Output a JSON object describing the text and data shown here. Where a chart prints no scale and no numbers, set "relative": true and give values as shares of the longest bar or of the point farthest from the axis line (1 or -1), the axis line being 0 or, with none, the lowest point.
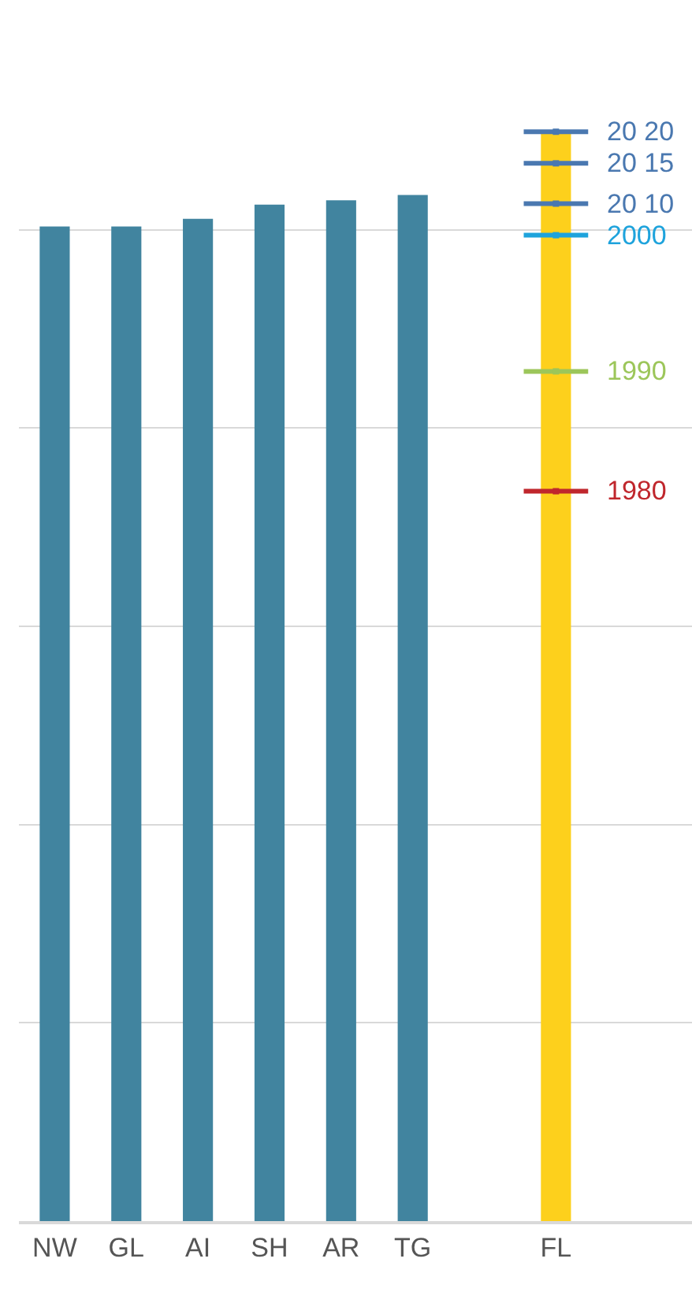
{
  "chart_data": {
    "type": "bar",
    "relative": true,
    "grid": "y",
    "legend": "top right",
    "categories": [
      "NW",
      "GL",
      "AI",
      "SH",
      "AR",
      "TG",
      null,
      "FL"
    ],
    "series": [
      {
        "colors": [
          "#41849f",
          "#41849f",
          "#41849f",
          "#41849f",
          "#41849f",
          "#41849f",
          "#41849f",
          "#fdd01c"
        ],
        "values": [
          0.913,
          0.913,
          0.92,
          0.933,
          0.937,
          0.942,
          null,
          1
        ]
      },
      {
        "type": "scatter",
        "name": "20 20",
        "color": "#4a78b0",
        "marker": "square",
        "values": [
          null,
          null,
          null,
          null,
          null,
          null,
          null,
          1
        ]
      },
      {
        "type": "scatter",
        "name": "20 15",
        "color": "#4a78b0",
        "marker": "square",
        "values": [
          null,
          null,
          null,
          null,
          null,
          null,
          null,
          0.971
        ]
      },
      {
        "type": "scatter",
        "name": "20 10",
        "color": "#4a78b0",
        "marker": "square",
        "values": [
          null,
          null,
          null,
          null,
          null,
          null,
          null,
          0.934
        ]
      },
      {
        "type": "scatter",
        "name": "2000",
        "color": "#1ea3dc",
        "marker": "square",
        "values": [
          null,
          null,
          null,
          null,
          null,
          null,
          null,
          0.905
        ]
      },
      {
        "type": "scatter",
        "name": "1990",
        "color": "#9cc65a",
        "marker": "square",
        "values": [
          null,
          null,
          null,
          null,
          null,
          null,
          null,
          0.78
        ]
      },
      {
        "type": "scatter",
        "name": "1980",
        "color": "#c0272d",
        "marker": "square",
        "values": [
          null,
          null,
          null,
          null,
          null,
          null,
          null,
          0.67
        ]
      }
    ]
  }
}
